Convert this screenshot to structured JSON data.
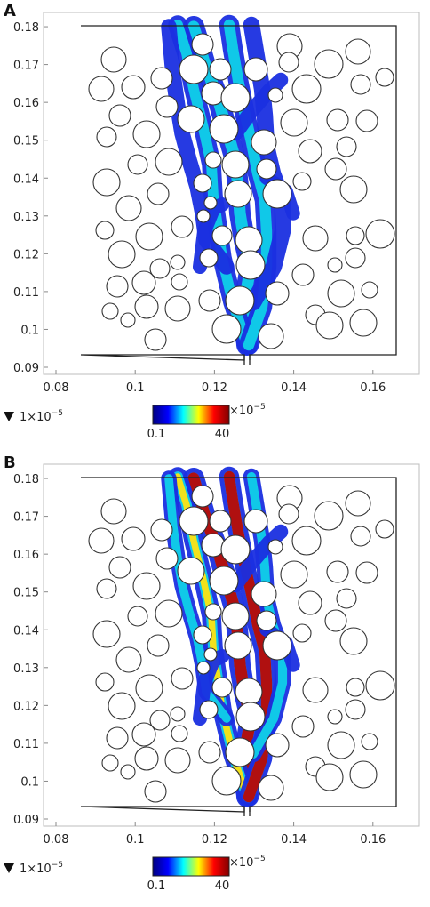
{
  "panels": [
    {
      "letter": "A",
      "x_ticks": [
        "0.08",
        "0.1",
        "0.12",
        "0.14",
        "0.16"
      ],
      "y_ticks": [
        "0.09",
        "0.1",
        "0.11",
        "0.12",
        "0.13",
        "0.14",
        "0.15",
        "0.16",
        "0.17",
        "0.18"
      ],
      "arrow_label_base": "1×10",
      "arrow_label_exp": "−5",
      "colorbar": {
        "min_label": "0.1",
        "max_label": "40",
        "scale_base": "×10",
        "scale_exp": "−5"
      }
    },
    {
      "letter": "B",
      "x_ticks": [
        "0.08",
        "0.1",
        "0.12",
        "0.14",
        "0.16"
      ],
      "y_ticks": [
        "0.09",
        "0.1",
        "0.11",
        "0.12",
        "0.13",
        "0.14",
        "0.15",
        "0.16",
        "0.17",
        "0.18"
      ],
      "arrow_label_base": "1×10",
      "arrow_label_exp": "−5",
      "colorbar": {
        "min_label": "0.1",
        "max_label": "40",
        "scale_base": "×10",
        "scale_exp": "−5"
      }
    }
  ],
  "colors": {
    "colormap": [
      "#00007f",
      "#0000ff",
      "#00ffff",
      "#ffff00",
      "#ff0000",
      "#7f0000"
    ],
    "flow_low": "#1a2fe0",
    "flow_mid": "#10c8e8",
    "flow_high": "#b01010"
  }
}
